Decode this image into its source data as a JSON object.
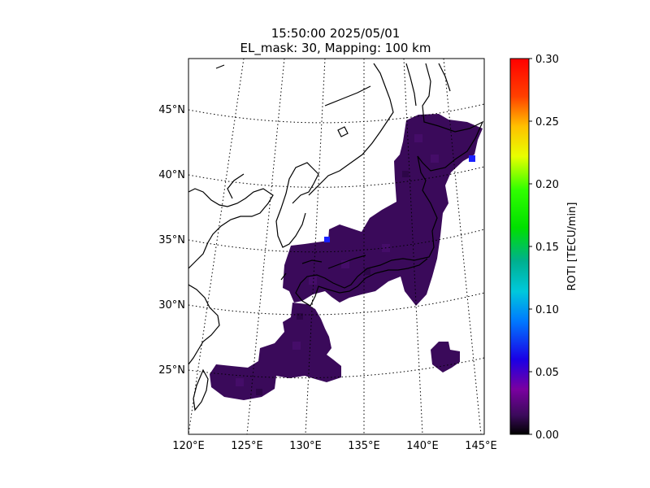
{
  "title": {
    "line1": "15:50:00 2025/05/01",
    "line2": "EL_mask: 30, Mapping: 100 km"
  },
  "map": {
    "lon_range": [
      120,
      145
    ],
    "lat_range": [
      20,
      49
    ],
    "parallels": [
      {
        "lat": 25,
        "label": "25°N"
      },
      {
        "lat": 30,
        "label": "30°N"
      },
      {
        "lat": 35,
        "label": "35°N"
      },
      {
        "lat": 40,
        "label": "40°N"
      },
      {
        "lat": 45,
        "label": "45°N"
      }
    ],
    "meridians": [
      {
        "lon": 120,
        "label": "120°E"
      },
      {
        "lon": 125,
        "label": "125°E"
      },
      {
        "lon": 130,
        "label": "130°E"
      },
      {
        "lon": 135,
        "label": "135°E"
      },
      {
        "lon": 140,
        "label": "140°E"
      },
      {
        "lon": 145,
        "label": "145°E"
      }
    ],
    "gridline_style": "dotted",
    "coastline_color": "#000000",
    "data_color": "#3a0a5a"
  },
  "colorbar": {
    "label": "ROTI [TECU/min]",
    "range": [
      0.0,
      0.3
    ],
    "colormap": "nipy_spectral-like (black-purple-blue-cyan-green-yellow-red)",
    "ticks": [
      "0.00",
      "0.05",
      "0.10",
      "0.15",
      "0.20",
      "0.25",
      "0.30"
    ]
  },
  "roti_data": {
    "typical_value": 0.03,
    "regions": [
      "Japan main islands and surroundings (~30°N–44°N)",
      "Ryukyu arc (~24°N–30°N)",
      "Isolated patch near 26°N 142°E"
    ],
    "elevated_points": [
      {
        "lat": 41.5,
        "lon": 144.5,
        "value": 0.06
      },
      {
        "lat": 35.5,
        "lon": 131.5,
        "value": 0.06
      }
    ]
  }
}
